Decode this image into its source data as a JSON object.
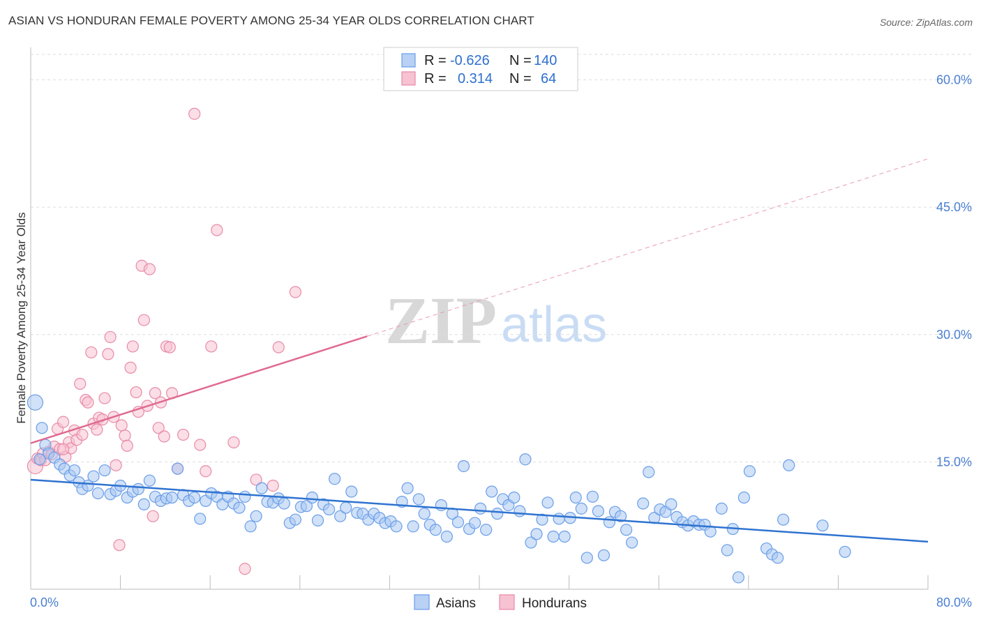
{
  "header": {
    "title": "ASIAN VS HONDURAN FEMALE POVERTY AMONG 25-34 YEAR OLDS CORRELATION CHART",
    "source": "Source: ZipAtlas.com"
  },
  "watermark": {
    "zip": "ZIP",
    "atlas": "atlas"
  },
  "legend": {
    "rows": [
      {
        "r_label": "R =",
        "r_value": "-0.626",
        "n_label": "N =",
        "n_value": "140",
        "color": "#8ab4f0"
      },
      {
        "r_label": "R =",
        "r_value": "0.314",
        "n_label": "N =",
        "n_value": "64",
        "color": "#f4a9c0"
      }
    ]
  },
  "chart_data": {
    "type": "scatter",
    "title": "ASIAN VS HONDURAN FEMALE POVERTY AMONG 25-34 YEAR OLDS CORRELATION CHART",
    "xlabel": "",
    "ylabel": "Female Poverty Among 25-34 Year Olds",
    "xlim": [
      0,
      80
    ],
    "ylim": [
      0,
      63
    ],
    "x_tick_labels": [
      "0.0%",
      "80.0%"
    ],
    "y_ticks": [
      15,
      30,
      45,
      60
    ],
    "y_tick_labels": [
      "15.0%",
      "30.0%",
      "45.0%",
      "60.0%"
    ],
    "grid": true,
    "legend_position": "top-center",
    "series": [
      {
        "name": "Asians",
        "color": "#6a9ee8",
        "fill": "#a9c8f3",
        "r": -0.626,
        "n": 140,
        "trend": {
          "x0": 0,
          "y0": 12.9,
          "x1": 80,
          "y1": 5.6,
          "dashed_from": null
        },
        "points": [
          [
            0.4,
            22.0
          ],
          [
            1.0,
            19.0
          ],
          [
            1.3,
            17.0
          ],
          [
            1.6,
            16.0
          ],
          [
            2.1,
            15.5
          ],
          [
            2.6,
            14.7
          ],
          [
            3.0,
            14.2
          ],
          [
            3.5,
            13.4
          ],
          [
            3.9,
            14.0
          ],
          [
            4.3,
            12.6
          ],
          [
            4.6,
            11.8
          ],
          [
            5.1,
            12.2
          ],
          [
            5.6,
            13.3
          ],
          [
            6.0,
            11.3
          ],
          [
            6.6,
            14.0
          ],
          [
            7.1,
            11.2
          ],
          [
            7.6,
            11.6
          ],
          [
            8.0,
            12.2
          ],
          [
            8.6,
            10.8
          ],
          [
            9.1,
            11.5
          ],
          [
            9.6,
            11.8
          ],
          [
            10.1,
            10.0
          ],
          [
            10.6,
            12.8
          ],
          [
            11.1,
            10.9
          ],
          [
            11.6,
            10.4
          ],
          [
            12.1,
            10.7
          ],
          [
            12.6,
            10.8
          ],
          [
            13.1,
            14.2
          ],
          [
            13.6,
            11.1
          ],
          [
            14.1,
            10.4
          ],
          [
            14.6,
            10.8
          ],
          [
            15.1,
            8.3
          ],
          [
            15.6,
            10.4
          ],
          [
            16.1,
            11.3
          ],
          [
            16.6,
            10.9
          ],
          [
            17.1,
            10.0
          ],
          [
            17.6,
            10.9
          ],
          [
            18.1,
            10.1
          ],
          [
            18.6,
            9.6
          ],
          [
            19.1,
            10.9
          ],
          [
            19.6,
            7.4
          ],
          [
            20.1,
            8.6
          ],
          [
            20.6,
            11.9
          ],
          [
            21.1,
            10.3
          ],
          [
            21.6,
            10.2
          ],
          [
            22.1,
            10.7
          ],
          [
            22.6,
            10.1
          ],
          [
            23.1,
            7.8
          ],
          [
            23.6,
            8.2
          ],
          [
            24.1,
            9.7
          ],
          [
            24.6,
            9.8
          ],
          [
            25.1,
            10.8
          ],
          [
            25.6,
            8.1
          ],
          [
            26.1,
            10.0
          ],
          [
            26.6,
            9.4
          ],
          [
            27.1,
            13.0
          ],
          [
            27.6,
            8.6
          ],
          [
            28.1,
            9.6
          ],
          [
            28.6,
            11.5
          ],
          [
            29.1,
            9.0
          ],
          [
            29.6,
            8.9
          ],
          [
            30.1,
            8.2
          ],
          [
            30.6,
            8.9
          ],
          [
            31.1,
            8.4
          ],
          [
            31.6,
            7.8
          ],
          [
            32.1,
            8.0
          ],
          [
            32.6,
            7.4
          ],
          [
            33.1,
            10.3
          ],
          [
            33.6,
            11.9
          ],
          [
            34.1,
            7.4
          ],
          [
            34.6,
            10.6
          ],
          [
            35.1,
            8.9
          ],
          [
            35.6,
            7.6
          ],
          [
            36.1,
            7.0
          ],
          [
            36.6,
            9.9
          ],
          [
            37.1,
            6.2
          ],
          [
            37.6,
            8.9
          ],
          [
            38.1,
            7.9
          ],
          [
            38.6,
            14.5
          ],
          [
            39.1,
            7.1
          ],
          [
            39.6,
            7.8
          ],
          [
            40.1,
            9.5
          ],
          [
            40.6,
            7.0
          ],
          [
            41.1,
            11.5
          ],
          [
            41.6,
            8.9
          ],
          [
            42.1,
            10.6
          ],
          [
            42.6,
            9.9
          ],
          [
            43.1,
            10.8
          ],
          [
            43.6,
            9.2
          ],
          [
            44.1,
            15.3
          ],
          [
            44.6,
            5.5
          ],
          [
            45.1,
            6.5
          ],
          [
            45.6,
            8.2
          ],
          [
            46.1,
            10.2
          ],
          [
            46.6,
            6.2
          ],
          [
            47.1,
            8.3
          ],
          [
            47.6,
            6.2
          ],
          [
            48.1,
            8.4
          ],
          [
            48.6,
            10.8
          ],
          [
            49.1,
            9.5
          ],
          [
            49.6,
            3.7
          ],
          [
            50.1,
            10.9
          ],
          [
            50.6,
            9.2
          ],
          [
            51.1,
            4.0
          ],
          [
            51.6,
            7.9
          ],
          [
            52.1,
            9.1
          ],
          [
            52.6,
            8.6
          ],
          [
            53.1,
            7.0
          ],
          [
            53.6,
            5.5
          ],
          [
            54.6,
            10.1
          ],
          [
            55.1,
            13.8
          ],
          [
            55.6,
            8.4
          ],
          [
            56.1,
            9.4
          ],
          [
            56.6,
            9.1
          ],
          [
            57.1,
            10.0
          ],
          [
            57.6,
            8.5
          ],
          [
            58.1,
            7.9
          ],
          [
            58.6,
            7.5
          ],
          [
            59.1,
            8.0
          ],
          [
            59.6,
            7.6
          ],
          [
            60.1,
            7.6
          ],
          [
            60.6,
            6.8
          ],
          [
            61.6,
            9.5
          ],
          [
            62.1,
            4.6
          ],
          [
            62.6,
            7.1
          ],
          [
            63.1,
            1.4
          ],
          [
            63.6,
            10.8
          ],
          [
            64.1,
            13.9
          ],
          [
            65.6,
            4.8
          ],
          [
            66.1,
            4.1
          ],
          [
            66.6,
            3.7
          ],
          [
            67.1,
            8.2
          ],
          [
            67.6,
            14.6
          ],
          [
            70.6,
            7.5
          ],
          [
            72.6,
            4.4
          ],
          [
            0.8,
            15.3
          ]
        ],
        "marker_sizes": {
          "default": 8,
          "large": 11
        }
      },
      {
        "name": "Hondurans",
        "color": "#e88aa8",
        "fill": "#f7c2d2",
        "r": 0.314,
        "n": 64,
        "trend": {
          "x0": 0,
          "y0": 17.2,
          "x1": 30,
          "y1": 29.8,
          "dash_x1": 80,
          "dash_y1": 50.7
        },
        "points": [
          [
            0.4,
            14.5
          ],
          [
            0.6,
            15.4
          ],
          [
            0.9,
            15.2
          ],
          [
            1.1,
            16.0
          ],
          [
            1.3,
            15.2
          ],
          [
            1.6,
            16.2
          ],
          [
            1.9,
            15.9
          ],
          [
            2.1,
            16.8
          ],
          [
            2.4,
            18.9
          ],
          [
            2.6,
            16.5
          ],
          [
            2.9,
            19.7
          ],
          [
            3.1,
            15.6
          ],
          [
            3.4,
            17.3
          ],
          [
            3.6,
            16.6
          ],
          [
            3.9,
            18.7
          ],
          [
            4.1,
            17.6
          ],
          [
            4.4,
            24.2
          ],
          [
            4.6,
            18.2
          ],
          [
            4.9,
            22.3
          ],
          [
            5.1,
            22.0
          ],
          [
            5.4,
            27.9
          ],
          [
            5.6,
            19.5
          ],
          [
            5.9,
            18.8
          ],
          [
            6.1,
            20.2
          ],
          [
            6.4,
            20.0
          ],
          [
            6.6,
            22.5
          ],
          [
            6.9,
            27.7
          ],
          [
            7.1,
            29.7
          ],
          [
            7.4,
            20.3
          ],
          [
            7.6,
            14.6
          ],
          [
            7.9,
            5.2
          ],
          [
            8.1,
            19.3
          ],
          [
            8.4,
            18.1
          ],
          [
            8.6,
            16.9
          ],
          [
            8.9,
            26.1
          ],
          [
            9.1,
            28.6
          ],
          [
            9.4,
            23.2
          ],
          [
            9.6,
            20.9
          ],
          [
            9.9,
            38.1
          ],
          [
            10.1,
            31.7
          ],
          [
            10.4,
            21.6
          ],
          [
            10.6,
            37.7
          ],
          [
            10.9,
            8.6
          ],
          [
            11.1,
            23.1
          ],
          [
            11.4,
            19.0
          ],
          [
            11.6,
            22.0
          ],
          [
            11.9,
            18.0
          ],
          [
            12.1,
            28.6
          ],
          [
            12.4,
            28.5
          ],
          [
            12.6,
            23.1
          ],
          [
            13.1,
            14.2
          ],
          [
            13.6,
            18.2
          ],
          [
            14.6,
            56.0
          ],
          [
            15.1,
            17.0
          ],
          [
            15.6,
            13.9
          ],
          [
            16.1,
            28.6
          ],
          [
            16.6,
            42.3
          ],
          [
            18.1,
            17.3
          ],
          [
            19.1,
            2.4
          ],
          [
            20.1,
            12.9
          ],
          [
            21.6,
            12.2
          ],
          [
            22.1,
            28.5
          ],
          [
            23.6,
            35.0
          ],
          [
            2.9,
            16.5
          ]
        ],
        "marker_sizes": {
          "default": 8,
          "large": 11
        }
      }
    ]
  }
}
